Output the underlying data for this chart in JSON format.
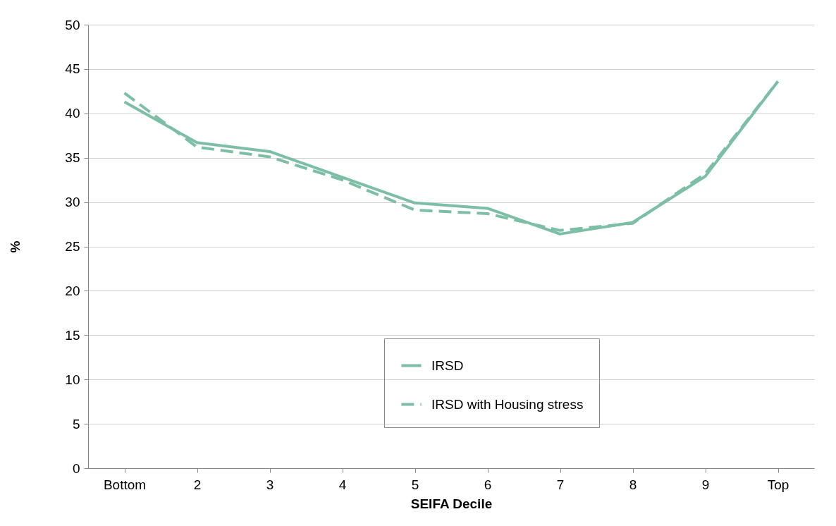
{
  "chart_data": {
    "type": "line",
    "xlabel": "SEIFA  Decile",
    "ylabel": "%",
    "categories": [
      "Bottom",
      "2",
      "3",
      "4",
      "5",
      "6",
      "7",
      "8",
      "9",
      "Top"
    ],
    "series": [
      {
        "name": "IRSD",
        "color": "#7dbfa6",
        "line_style": "solid",
        "values": [
          41.3,
          36.7,
          35.7,
          32.8,
          29.9,
          29.3,
          26.4,
          27.7,
          32.9,
          43.6
        ]
      },
      {
        "name": "IRSD with Housing stress",
        "color": "#7dbfa6",
        "line_style": "dashed",
        "values": [
          42.3,
          36.2,
          35.1,
          32.5,
          29.1,
          28.7,
          26.8,
          27.6,
          33.2,
          43.6
        ]
      }
    ],
    "ylim": [
      0,
      50
    ],
    "yticks": [
      0,
      5,
      10,
      15,
      20,
      25,
      30,
      35,
      40,
      45,
      50
    ],
    "grid": "y",
    "legend": "bottom",
    "marker": "none"
  }
}
